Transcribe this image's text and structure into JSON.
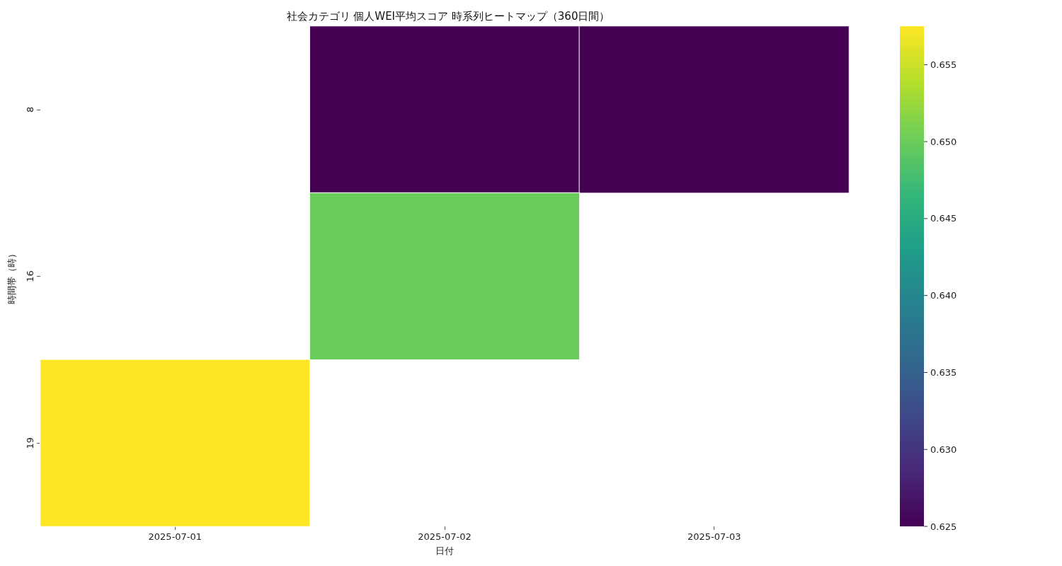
{
  "chart_data": {
    "type": "heatmap",
    "title": "社会カテゴリ 個人WEI平均スコア 時系列ヒートマップ（360日間）",
    "xlabel": "日付",
    "ylabel": "時間帯（時）",
    "categories": [
      "2025-07-01",
      "2025-07-02",
      "2025-07-03"
    ],
    "y_categories": [
      "8",
      "16",
      "19"
    ],
    "cells": [
      [
        null,
        0.625,
        0.625
      ],
      [
        null,
        0.65,
        null
      ],
      [
        0.6575,
        null,
        null
      ]
    ],
    "clim": [
      0.625,
      0.6575
    ],
    "cticks": [
      0.625,
      {
        "value": 0.63,
        "label": "0.630"
      },
      0.635,
      {
        "value": 0.64,
        "label": "0.640"
      },
      0.645,
      {
        "value": 0.65,
        "label": "0.650"
      },
      0.655
    ]
  }
}
